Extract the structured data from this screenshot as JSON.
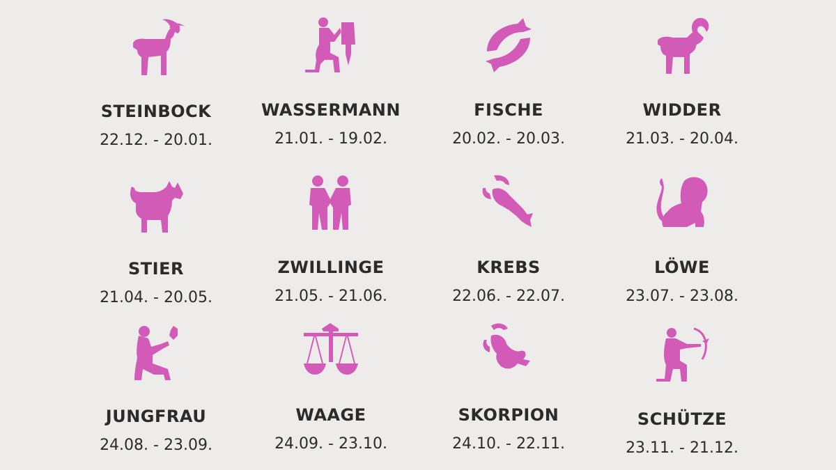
{
  "accent_color": "#d35bb8",
  "signs": [
    {
      "name": "STEINBOCK",
      "dates": "22.12. - 20.01.",
      "icon": "capricorn-goat-icon"
    },
    {
      "name": "WASSERMANN",
      "dates": "21.01. - 19.02.",
      "icon": "aquarius-water-bearer-icon"
    },
    {
      "name": "FISCHE",
      "dates": "20.02. - 20.03.",
      "icon": "pisces-fish-icon"
    },
    {
      "name": "WIDDER",
      "dates": "21.03. - 20.04.",
      "icon": "aries-ram-icon"
    },
    {
      "name": "STIER",
      "dates": "21.04. - 20.05.",
      "icon": "taurus-bull-icon"
    },
    {
      "name": "ZWILLINGE",
      "dates": "21.05. - 21.06.",
      "icon": "gemini-twins-icon"
    },
    {
      "name": "KREBS",
      "dates": "22.06. - 22.07.",
      "icon": "cancer-crab-icon"
    },
    {
      "name": "LÖWE",
      "dates": "23.07. - 23.08.",
      "icon": "leo-lion-icon"
    },
    {
      "name": "JUNGFRAU",
      "dates": "24.08. - 23.09.",
      "icon": "virgo-maiden-icon"
    },
    {
      "name": "WAAGE",
      "dates": "24.09. - 23.10.",
      "icon": "libra-scales-icon"
    },
    {
      "name": "SKORPION",
      "dates": "24.10. - 22.11.",
      "icon": "scorpio-scorpion-icon"
    },
    {
      "name": "SCHÜTZE",
      "dates": "23.11. - 21.12.",
      "icon": "sagittarius-archer-icon"
    }
  ]
}
